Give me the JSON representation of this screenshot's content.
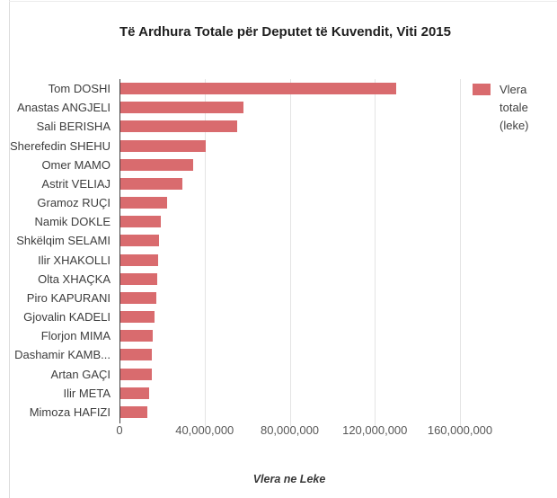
{
  "chart_data": {
    "type": "bar",
    "orientation": "horizontal",
    "title": "Të Ardhura Totale për Deputet të Kuvendit, Viti 2015",
    "xlabel": "Vlera ne Leke",
    "legend_label": "Vlera totale (leke)",
    "legend_position": "right",
    "bar_color": "#d96b6e",
    "grid": true,
    "xlim": [
      0,
      160000000
    ],
    "x_ticks": [
      0,
      40000000,
      80000000,
      120000000,
      160000000
    ],
    "x_tick_labels": [
      "0",
      "40,000,000",
      "80,000,000",
      "120,000,000",
      "160,000,000"
    ],
    "categories": [
      "Tom DOSHI",
      "Anastas ANGJELI",
      "Sali BERISHA",
      "Sherefedin SHEHU",
      "Omer MAMO",
      "Astrit VELIAJ",
      "Gramoz RUÇI",
      "Namik DOKLE",
      "Shkëlqim SELAMI",
      "Ilir XHAKOLLI",
      "Olta XHAÇKA",
      "Piro KAPURANI",
      "Gjovalin KADELI",
      "Florjon MIMA",
      "Dashamir KAMB...",
      "Artan GAÇI",
      "Ilir META",
      "Mimoza HAFIZI"
    ],
    "values": [
      129500000,
      58000000,
      55000000,
      40000000,
      34200000,
      29000000,
      22000000,
      19000000,
      18200000,
      17800000,
      17300000,
      16900000,
      15900000,
      15300000,
      14800000,
      14700000,
      13300000,
      12800000
    ]
  }
}
